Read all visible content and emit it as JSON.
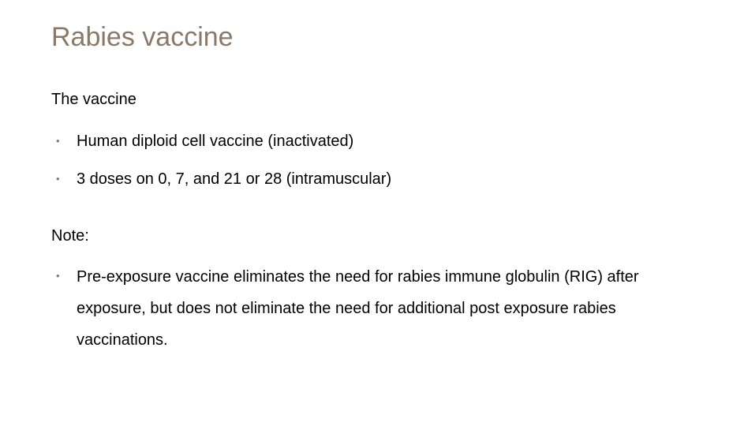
{
  "slide": {
    "title": "Rabies vaccine",
    "title_color": "#8a7967",
    "title_fontsize": 34,
    "background_color": "#ffffff",
    "body_fontsize": 20,
    "body_color": "#000000",
    "bullet_color": "#8a7967",
    "section1": {
      "label": "The vaccine",
      "items": [
        "Human diploid cell vaccine (inactivated)",
        "3 doses on 0, 7, and 21 or 28 (intramuscular)"
      ]
    },
    "section2": {
      "label": "Note:",
      "items": [
        "Pre-exposure vaccine eliminates the need for rabies immune globulin (RIG) after exposure, but does not eliminate the need for additional post exposure rabies vaccinations."
      ]
    }
  }
}
